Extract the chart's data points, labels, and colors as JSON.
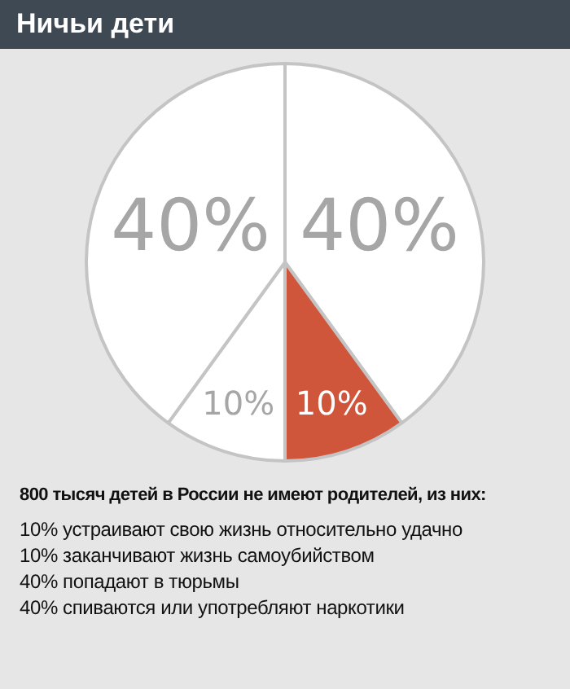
{
  "chart_data": {
    "type": "pie",
    "title": "Ничьи дети",
    "subtitle": "800 тысяч детей в России не имеют родителей, из них:",
    "categories": [
      null,
      null,
      null,
      null
    ],
    "values": [
      40,
      10,
      10,
      40
    ],
    "colors": [
      "#ffffff",
      "#cf553b",
      "#ffffff",
      "#ffffff"
    ],
    "value_labels": [
      "40%",
      "10%",
      "10%",
      "40%"
    ],
    "annotations": [
      "10% устраивают свою жизнь относительно удачно",
      "10% заканчивают жизнь самоубийством",
      "40% попадают в тюрьмы",
      "40% спиваются или употребляют наркотики"
    ],
    "legend": false
  }
}
